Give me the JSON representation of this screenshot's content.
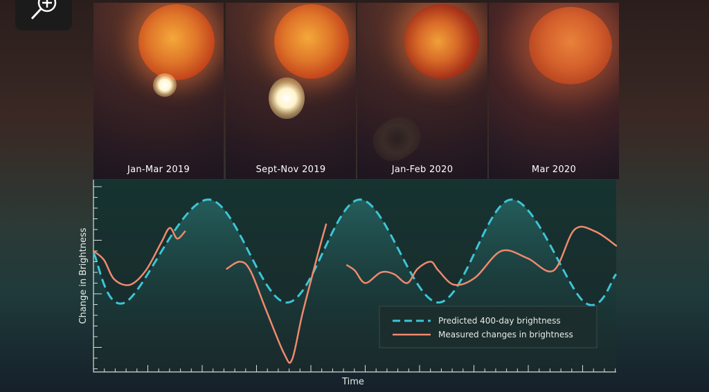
{
  "panels": [
    {
      "caption": "Jan-Mar 2019"
    },
    {
      "caption": "Sept-Nov 2019"
    },
    {
      "caption": "Jan-Feb 2020"
    },
    {
      "caption": "Mar 2020"
    }
  ],
  "toolbar": {
    "zoom_icon": "zoom-in-icon"
  },
  "chart_data": {
    "type": "line",
    "xlabel": "Time",
    "ylabel": "Change in Brightness",
    "legend_position": "bottom-right",
    "series": [
      {
        "name": "Predicted 400-day brightness",
        "style": "dashed",
        "color": "#3cc6d6",
        "points": [
          [
            0,
            0.62
          ],
          [
            0.06,
            0.34
          ],
          [
            0.22,
            0.92
          ],
          [
            0.37,
            0.34
          ],
          [
            0.51,
            0.92
          ],
          [
            0.66,
            0.34
          ],
          [
            0.8,
            0.92
          ],
          [
            0.94,
            0.34
          ],
          [
            1.0,
            0.5
          ]
        ]
      },
      {
        "name": "Measured changes in brightness",
        "style": "solid",
        "color": "#f08a6e",
        "segments": [
          [
            [
              0,
              0.63
            ],
            [
              0.02,
              0.58
            ],
            [
              0.04,
              0.47
            ],
            [
              0.07,
              0.44
            ],
            [
              0.1,
              0.52
            ],
            [
              0.13,
              0.68
            ],
            [
              0.146,
              0.76
            ],
            [
              0.16,
              0.7
            ],
            [
              0.175,
              0.74
            ]
          ],
          [
            [
              0.255,
              0.53
            ],
            [
              0.28,
              0.57
            ],
            [
              0.3,
              0.52
            ],
            [
              0.33,
              0.3
            ],
            [
              0.365,
              0.05
            ],
            [
              0.38,
              0.02
            ],
            [
              0.4,
              0.28
            ],
            [
              0.43,
              0.62
            ],
            [
              0.445,
              0.78
            ]
          ],
          [
            [
              0.485,
              0.55
            ],
            [
              0.5,
              0.52
            ],
            [
              0.52,
              0.45
            ],
            [
              0.55,
              0.51
            ],
            [
              0.575,
              0.5
            ],
            [
              0.6,
              0.45
            ],
            [
              0.62,
              0.53
            ],
            [
              0.645,
              0.57
            ],
            [
              0.66,
              0.52
            ],
            [
              0.69,
              0.44
            ],
            [
              0.73,
              0.48
            ],
            [
              0.78,
              0.63
            ],
            [
              0.83,
              0.59
            ],
            [
              0.88,
              0.52
            ],
            [
              0.92,
              0.75
            ],
            [
              0.96,
              0.74
            ],
            [
              1.0,
              0.66
            ]
          ]
        ]
      }
    ]
  },
  "colors": {
    "predicted": "#3cc6d6",
    "measured": "#f08a6e",
    "axis": "#d9dedc",
    "chart_bg": "#14322f"
  }
}
